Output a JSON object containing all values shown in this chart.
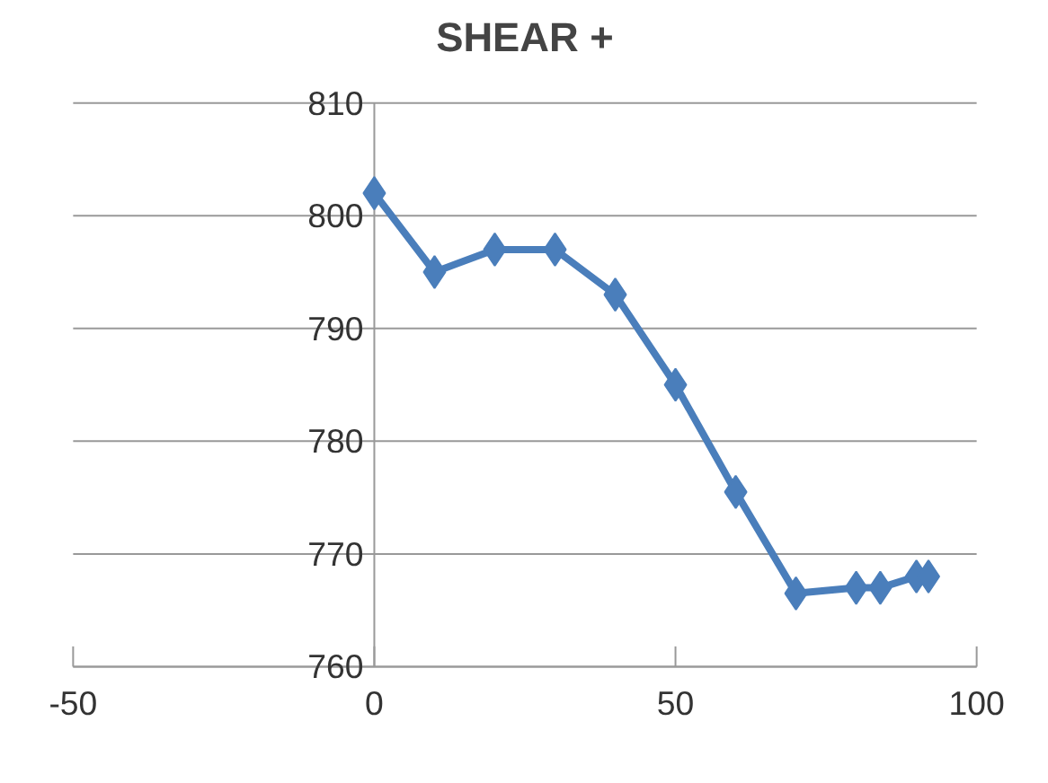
{
  "chart_data": {
    "type": "line",
    "title": "SHEAR +",
    "x": [
      0,
      10,
      20,
      30,
      40,
      50,
      60,
      70,
      80,
      84,
      90,
      92
    ],
    "series": [
      {
        "color": "#4a7ebb",
        "values": [
          802,
          795,
          797,
          797,
          793,
          785,
          775.5,
          766.5,
          767,
          767,
          768,
          768
        ]
      }
    ],
    "xlim": [
      -50,
      100
    ],
    "xticks": [
      -50,
      0,
      50,
      100
    ],
    "ylim": [
      760,
      810
    ],
    "yticks": [
      760,
      770,
      780,
      790,
      800,
      810
    ],
    "grid": "y",
    "marker": "diamond",
    "line_style": "solid"
  }
}
